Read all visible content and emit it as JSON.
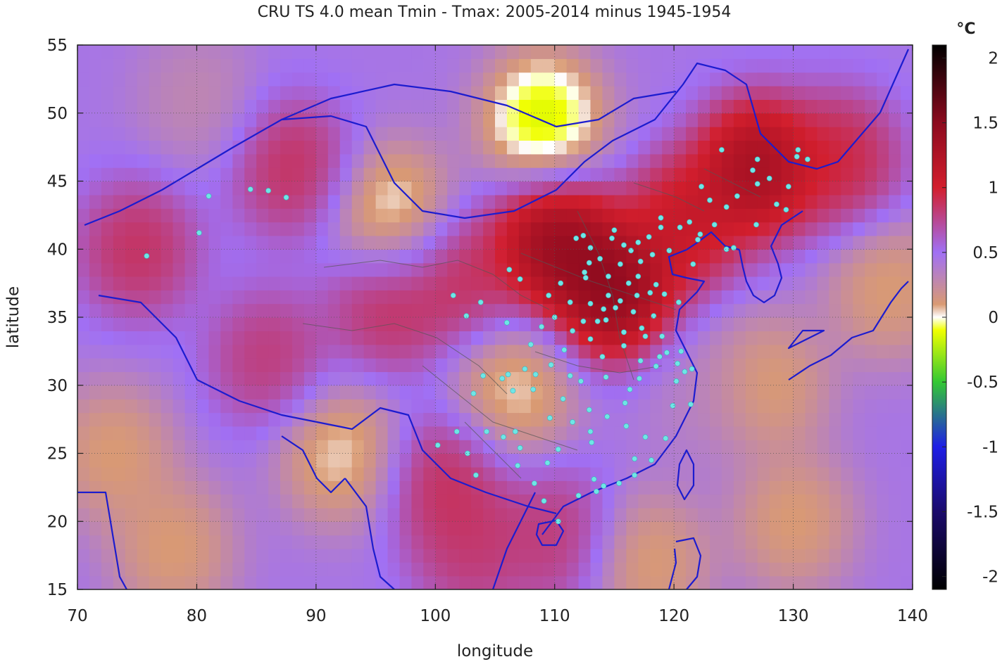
{
  "chart_data": {
    "type": "heatmap",
    "title": "CRU TS 4.0 mean Tmin - Tmax: 2005-2014 minus 1945-1954",
    "xlabel": "longitude",
    "ylabel": "latitude",
    "xlim": [
      70,
      140
    ],
    "ylim": [
      15,
      55
    ],
    "xticks": [
      70,
      80,
      90,
      100,
      110,
      120,
      130,
      140
    ],
    "yticks": [
      15,
      20,
      25,
      30,
      35,
      40,
      45,
      50,
      55
    ],
    "grid": true,
    "colorbar": {
      "label": "°C",
      "range": [
        -2.1,
        2.1
      ],
      "ticks": [
        2,
        1.5,
        1,
        0.5,
        0,
        -0.5,
        -1,
        -1.5,
        -2
      ],
      "tick_labels": [
        "2",
        "1.5",
        "1",
        "0.5",
        "0",
        "-0.5",
        "-1",
        "-1.5",
        "-2"
      ],
      "stops": [
        {
          "v": -2.1,
          "color": "#000000"
        },
        {
          "v": -1.5,
          "color": "#1a0a6b"
        },
        {
          "v": -1.0,
          "color": "#1e1ee6"
        },
        {
          "v": -0.5,
          "color": "#33c833"
        },
        {
          "v": -0.1,
          "color": "#f0ff00"
        },
        {
          "v": 0.0,
          "color": "#ffffff"
        },
        {
          "v": 0.1,
          "color": "#d99a73"
        },
        {
          "v": 0.5,
          "color": "#a070f5"
        },
        {
          "v": 1.0,
          "color": "#d21e2d"
        },
        {
          "v": 1.5,
          "color": "#8c0a1e"
        },
        {
          "v": 2.1,
          "color": "#000000"
        }
      ]
    },
    "field_base_value": 0.45,
    "field_features": [
      {
        "lon": 115,
        "lat": 37,
        "value": 2.0
      },
      {
        "lon": 110,
        "lat": 40.5,
        "value": 1.9
      },
      {
        "lon": 127,
        "lat": 46,
        "value": 1.8
      },
      {
        "lon": 121,
        "lat": 42,
        "value": 1.4
      },
      {
        "lon": 134,
        "lat": 46.5,
        "value": 1.2
      },
      {
        "lon": 75,
        "lat": 40,
        "value": 1.1
      },
      {
        "lon": 88,
        "lat": 46,
        "value": 1.1
      },
      {
        "lon": 96,
        "lat": 36,
        "value": 1.1
      },
      {
        "lon": 86,
        "lat": 32,
        "value": 1.0
      },
      {
        "lon": 101,
        "lat": 23,
        "value": 1.1
      },
      {
        "lon": 103,
        "lat": 18,
        "value": 1.0
      },
      {
        "lon": 110,
        "lat": 19,
        "value": 1.0
      },
      {
        "lon": 102,
        "lat": 38,
        "value": 1.1
      },
      {
        "lon": 109,
        "lat": 49.5,
        "value": -0.5
      },
      {
        "lon": 96.5,
        "lat": 42.5,
        "value": -0.3
      },
      {
        "lon": 106.5,
        "lat": 29.5,
        "value": -0.2
      },
      {
        "lon": 92,
        "lat": 25,
        "value": -0.2
      },
      {
        "lon": 122,
        "lat": 29,
        "value": 0.3
      },
      {
        "lon": 80,
        "lat": 51,
        "value": 0.2
      },
      {
        "lon": 73,
        "lat": 25,
        "value": -0.1
      },
      {
        "lon": 78,
        "lat": 18,
        "value": -0.1
      },
      {
        "lon": 138,
        "lat": 37,
        "value": -0.1
      },
      {
        "lon": 130,
        "lat": 20,
        "value": -0.1
      },
      {
        "lon": 128,
        "lat": 30,
        "value": -0.1
      },
      {
        "lon": 118,
        "lat": 17,
        "value": -0.1
      }
    ],
    "stations": [
      [
        75.8,
        39.5
      ],
      [
        80.2,
        41.2
      ],
      [
        81.0,
        43.9
      ],
      [
        84.5,
        44.4
      ],
      [
        86.0,
        44.3
      ],
      [
        87.5,
        43.8
      ],
      [
        101.5,
        36.6
      ],
      [
        102.6,
        35.1
      ],
      [
        103.8,
        36.1
      ],
      [
        106.2,
        38.5
      ],
      [
        107.1,
        37.8
      ],
      [
        108.9,
        34.3
      ],
      [
        109.5,
        36.6
      ],
      [
        110.0,
        35.0
      ],
      [
        111.3,
        36.1
      ],
      [
        112.6,
        37.9
      ],
      [
        113.0,
        40.1
      ],
      [
        111.8,
        40.8
      ],
      [
        112.4,
        41.0
      ],
      [
        114.5,
        38.0
      ],
      [
        115.5,
        38.9
      ],
      [
        116.4,
        39.9
      ],
      [
        117.2,
        39.1
      ],
      [
        118.2,
        39.6
      ],
      [
        119.6,
        39.9
      ],
      [
        121.6,
        38.9
      ],
      [
        122.0,
        40.7
      ],
      [
        123.4,
        41.8
      ],
      [
        124.4,
        43.1
      ],
      [
        125.3,
        43.9
      ],
      [
        126.6,
        45.8
      ],
      [
        129.6,
        44.6
      ],
      [
        130.3,
        46.8
      ],
      [
        131.2,
        46.6
      ],
      [
        127.0,
        46.6
      ],
      [
        124.0,
        47.3
      ],
      [
        126.9,
        41.8
      ],
      [
        125.0,
        40.1
      ],
      [
        124.4,
        40.0
      ],
      [
        122.2,
        41.1
      ],
      [
        118.9,
        42.3
      ],
      [
        117.9,
        40.9
      ],
      [
        115.0,
        41.4
      ],
      [
        114.5,
        36.6
      ],
      [
        115.5,
        36.2
      ],
      [
        116.9,
        36.6
      ],
      [
        117.0,
        38.0
      ],
      [
        118.5,
        37.4
      ],
      [
        119.2,
        36.7
      ],
      [
        120.4,
        36.1
      ],
      [
        118.3,
        35.1
      ],
      [
        116.6,
        35.4
      ],
      [
        115.1,
        35.7
      ],
      [
        113.6,
        34.7
      ],
      [
        114.3,
        34.8
      ],
      [
        112.4,
        34.7
      ],
      [
        114.0,
        32.1
      ],
      [
        115.8,
        33.9
      ],
      [
        117.3,
        34.2
      ],
      [
        118.8,
        32.1
      ],
      [
        117.2,
        31.8
      ],
      [
        119.0,
        33.6
      ],
      [
        120.9,
        31.0
      ],
      [
        121.5,
        31.2
      ],
      [
        120.2,
        30.3
      ],
      [
        119.9,
        28.5
      ],
      [
        121.4,
        28.6
      ],
      [
        118.1,
        24.5
      ],
      [
        119.3,
        26.1
      ],
      [
        117.6,
        26.2
      ],
      [
        115.9,
        28.7
      ],
      [
        116.0,
        27.0
      ],
      [
        114.3,
        30.6
      ],
      [
        112.2,
        30.3
      ],
      [
        111.3,
        30.7
      ],
      [
        112.9,
        28.2
      ],
      [
        111.5,
        27.3
      ],
      [
        113.1,
        25.8
      ],
      [
        110.3,
        25.3
      ],
      [
        108.3,
        22.8
      ],
      [
        109.4,
        24.3
      ],
      [
        113.3,
        23.1
      ],
      [
        114.1,
        22.6
      ],
      [
        116.7,
        23.4
      ],
      [
        110.3,
        20.0
      ],
      [
        113.5,
        22.2
      ],
      [
        106.7,
        26.6
      ],
      [
        107.1,
        25.4
      ],
      [
        104.0,
        30.7
      ],
      [
        105.6,
        30.5
      ],
      [
        106.5,
        29.6
      ],
      [
        107.5,
        31.2
      ],
      [
        108.4,
        30.8
      ],
      [
        106.1,
        30.8
      ],
      [
        102.7,
        25.0
      ],
      [
        103.4,
        23.4
      ],
      [
        100.2,
        25.6
      ],
      [
        101.8,
        26.6
      ],
      [
        104.3,
        26.6
      ],
      [
        108.0,
        33.0
      ],
      [
        106.0,
        34.6
      ],
      [
        109.7,
        31.5
      ],
      [
        110.8,
        32.6
      ],
      [
        113.0,
        33.4
      ],
      [
        115.8,
        32.9
      ],
      [
        116.3,
        29.7
      ],
      [
        117.1,
        30.5
      ],
      [
        118.5,
        31.4
      ],
      [
        120.3,
        31.6
      ],
      [
        120.6,
        32.5
      ],
      [
        119.4,
        32.4
      ],
      [
        112.9,
        39.0
      ],
      [
        113.8,
        39.3
      ],
      [
        114.8,
        40.8
      ],
      [
        115.8,
        40.3
      ],
      [
        117.0,
        40.5
      ],
      [
        118.9,
        41.6
      ],
      [
        120.5,
        41.6
      ],
      [
        121.3,
        42.0
      ],
      [
        123.0,
        43.6
      ],
      [
        122.3,
        44.6
      ],
      [
        127.0,
        44.8
      ],
      [
        128.0,
        45.2
      ],
      [
        128.6,
        43.3
      ],
      [
        129.4,
        42.9
      ],
      [
        130.4,
        47.3
      ],
      [
        111.5,
        34.0
      ],
      [
        113.0,
        36.0
      ],
      [
        114.1,
        35.6
      ],
      [
        117.6,
        33.6
      ],
      [
        116.2,
        37.5
      ],
      [
        118.0,
        36.8
      ],
      [
        112.5,
        38.3
      ],
      [
        110.5,
        37.5
      ],
      [
        108.2,
        29.7
      ],
      [
        110.7,
        29.0
      ],
      [
        109.6,
        27.6
      ],
      [
        113.0,
        26.6
      ],
      [
        114.4,
        27.7
      ],
      [
        116.7,
        24.6
      ],
      [
        115.4,
        22.8
      ],
      [
        112.0,
        21.9
      ],
      [
        109.1,
        21.5
      ],
      [
        106.9,
        24.1
      ],
      [
        105.7,
        26.2
      ],
      [
        103.2,
        29.4
      ]
    ]
  }
}
